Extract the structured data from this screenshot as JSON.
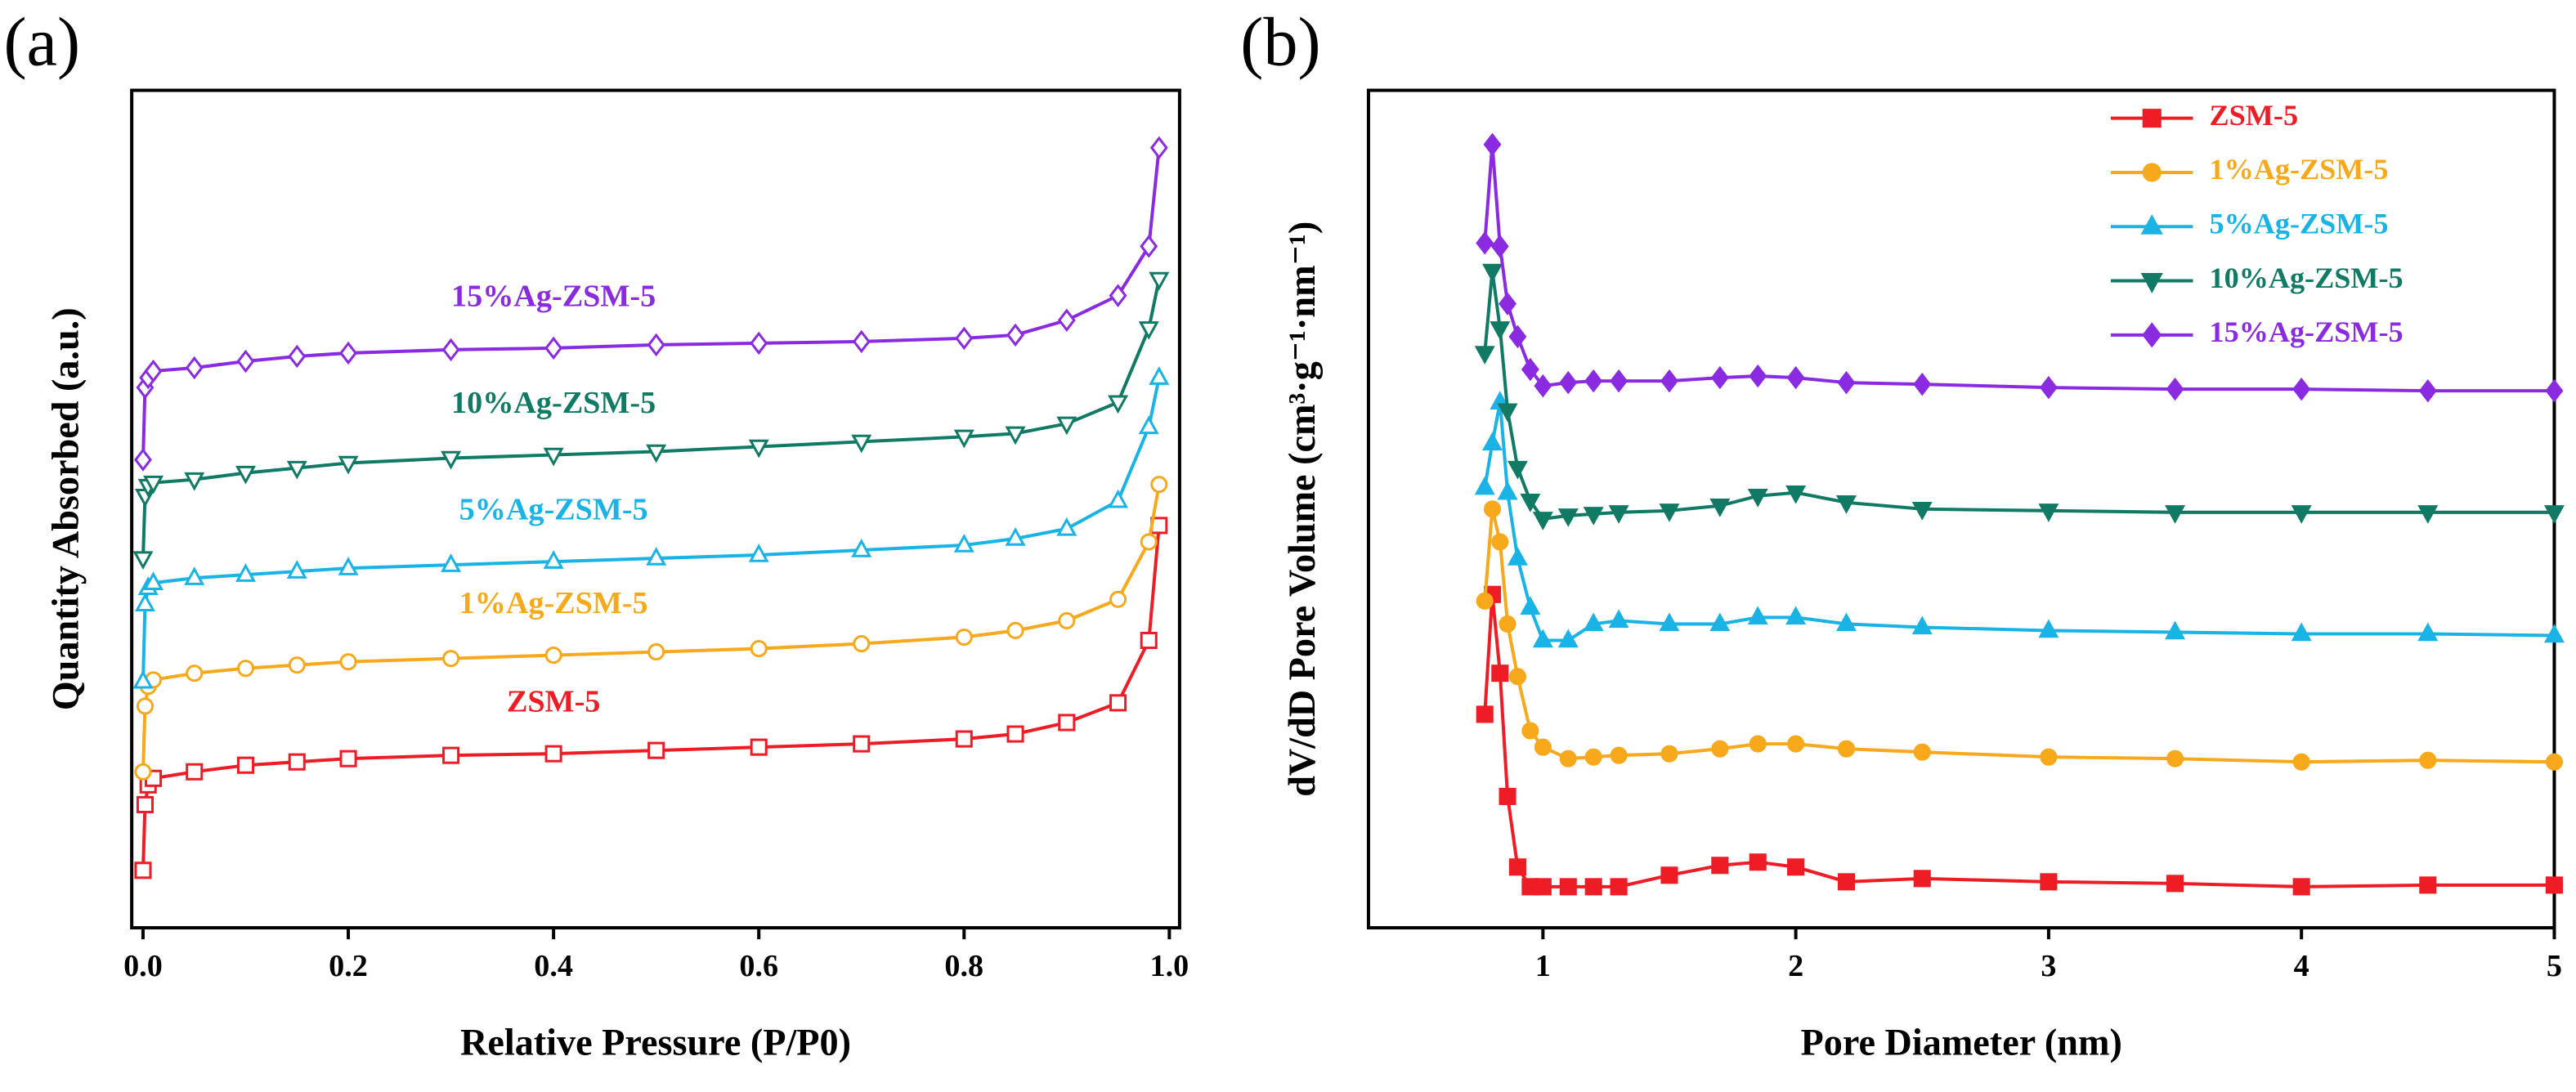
{
  "chart_data": [
    {
      "type": "line",
      "panel": "(a)",
      "xlabel": "Relative Pressure (P/P0)",
      "ylabel": "Quantity Absorbed (a.u.)",
      "xlim": [
        -0.011,
        1.01
      ],
      "ylim": [
        0,
        510
      ],
      "xticks": [
        {
          "value": 0,
          "label": "0.0"
        },
        {
          "value": 0.2,
          "label": "0.2"
        },
        {
          "value": 0.4,
          "label": "0.4"
        },
        {
          "value": 0.6,
          "label": "0.6"
        },
        {
          "value": 0.8,
          "label": "0.8"
        },
        {
          "value": 1,
          "label": "1.0"
        }
      ],
      "legend": "inline",
      "marker_fill": "open",
      "x": [
        0,
        0.002,
        0.005,
        0.01,
        0.05,
        0.1,
        0.15,
        0.2,
        0.3,
        0.4,
        0.5,
        0.6,
        0.7,
        0.8,
        0.85,
        0.9,
        0.95,
        0.98,
        0.99
      ],
      "series": [
        {
          "name": "ZSM-5",
          "color": "#ee1c25",
          "marker": "square",
          "values": [
            35,
            75,
            87,
            91,
            95,
            99,
            101,
            103,
            105,
            106,
            108,
            110,
            112,
            115,
            118,
            125,
            137,
            175,
            245
          ]
        },
        {
          "name": "1%Ag-ZSM-5",
          "color": "#f7a81b",
          "marker": "circle",
          "values": [
            95,
            135,
            147,
            151,
            155,
            158,
            160,
            162,
            164,
            166,
            168,
            170,
            173,
            177,
            181,
            187,
            200,
            235,
            270
          ]
        },
        {
          "name": "5%Ag-ZSM-5",
          "color": "#1ab3e6",
          "marker": "triangle-up",
          "values": [
            150,
            197,
            207,
            210,
            213,
            215,
            217,
            219,
            221,
            223,
            225,
            227,
            230,
            233,
            237,
            243,
            260,
            305,
            335
          ]
        },
        {
          "name": "10%Ag-ZSM-5",
          "color": "#117a65",
          "marker": "triangle-down",
          "values": [
            225,
            263,
            269,
            271,
            273,
            277,
            280,
            283,
            286,
            288,
            290,
            293,
            296,
            299,
            301,
            307,
            320,
            365,
            395
          ]
        },
        {
          "name": "15%Ag-ZSM-5",
          "color": "#8a2be2",
          "marker": "diamond",
          "values": [
            285,
            329,
            335,
            339,
            341,
            345,
            348,
            350,
            352,
            353,
            355,
            356,
            357,
            359,
            361,
            370,
            385,
            415,
            475
          ]
        }
      ]
    },
    {
      "type": "line",
      "panel": "(b)",
      "xlabel": "Pore Diameter (nm)",
      "ylabel": "dV/dD Pore Volume (cm³·g⁻¹·nm⁻¹)",
      "xlim": [
        0.31,
        5.0
      ],
      "ylim": [
        0,
        510
      ],
      "xticks": [
        1,
        2,
        3,
        4,
        5
      ],
      "legend": "upper right",
      "marker_fill": "solid",
      "x": [
        0.77,
        0.8,
        0.83,
        0.86,
        0.9,
        0.95,
        1.0,
        1.1,
        1.2,
        1.3,
        1.5,
        1.7,
        1.85,
        2.0,
        2.2,
        2.5,
        3.0,
        3.5,
        4.0,
        4.5,
        5.0
      ],
      "series": [
        {
          "name": "ZSM-5",
          "color": "#ee1c25",
          "marker": "square",
          "values": [
            130,
            203,
            155,
            80,
            37,
            25,
            25,
            25,
            25,
            25,
            32,
            38,
            40,
            37,
            28,
            30,
            28,
            27,
            25,
            26,
            26
          ]
        },
        {
          "name": "1%Ag-ZSM-5",
          "color": "#f7a81b",
          "marker": "circle",
          "values": [
            199,
            255,
            235,
            185,
            153,
            120,
            110,
            103,
            104,
            105,
            106,
            109,
            112,
            112,
            109,
            107,
            104,
            103,
            101,
            102,
            101
          ]
        },
        {
          "name": "5%Ag-ZSM-5",
          "color": "#1ab3e6",
          "marker": "triangle-up",
          "values": [
            268,
            295,
            320,
            265,
            225,
            195,
            175,
            175,
            185,
            187,
            185,
            185,
            189,
            189,
            185,
            183,
            181,
            180,
            179,
            179,
            178
          ]
        },
        {
          "name": "10%Ag-ZSM-5",
          "color": "#117a65",
          "marker": "triangle-down",
          "values": [
            350,
            400,
            365,
            315,
            280,
            260,
            249,
            251,
            252,
            253,
            254,
            257,
            263,
            265,
            259,
            255,
            254,
            253,
            253,
            253,
            253
          ]
        },
        {
          "name": "15%Ag-ZSM-5",
          "color": "#8a2be2",
          "marker": "diamond",
          "values": [
            417,
            477,
            415,
            380,
            360,
            340,
            330,
            332,
            333,
            333,
            333,
            335,
            336,
            335,
            332,
            331,
            329,
            328,
            328,
            327,
            327
          ]
        }
      ]
    }
  ]
}
